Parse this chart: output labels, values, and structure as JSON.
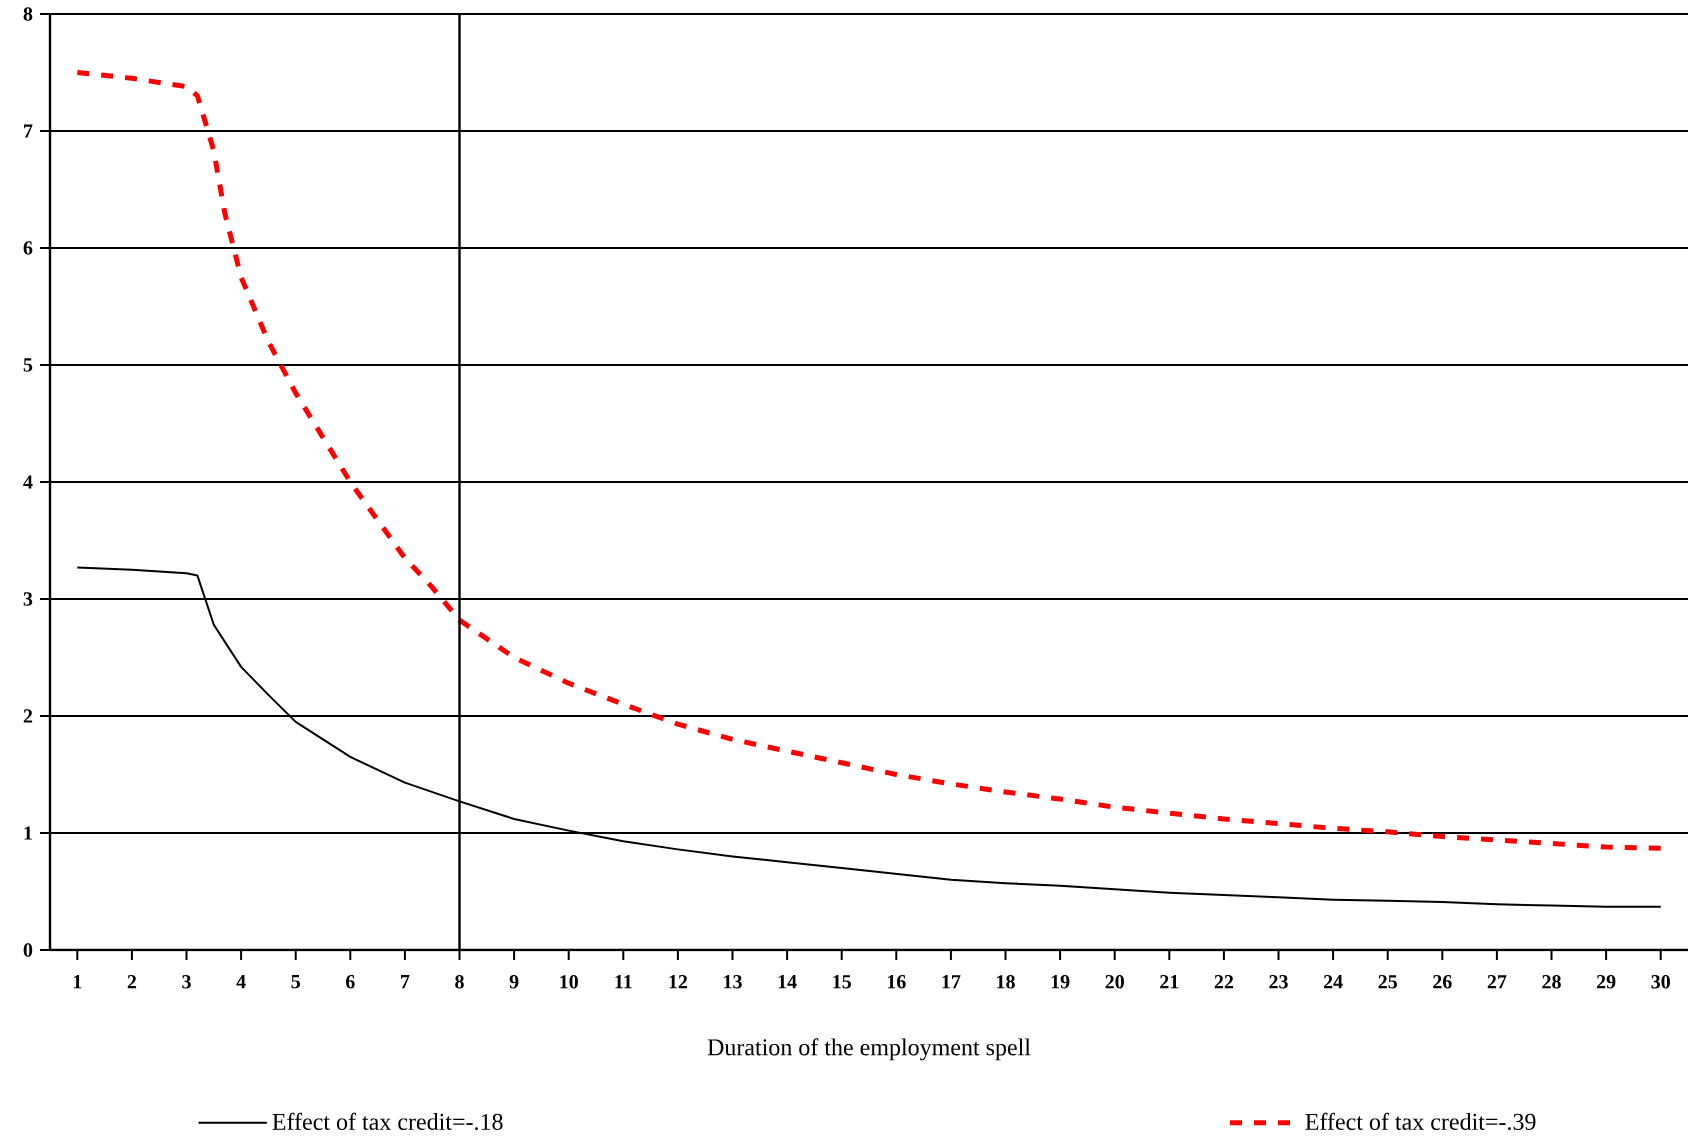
{
  "chart_data": {
    "type": "line",
    "xlabel": "Duration of the employment spell",
    "xlim": [
      0.5,
      30.5
    ],
    "xticks": [
      1,
      2,
      3,
      4,
      5,
      6,
      7,
      8,
      9,
      10,
      11,
      12,
      13,
      14,
      15,
      16,
      17,
      18,
      19,
      20,
      21,
      22,
      23,
      24,
      25,
      26,
      27,
      28,
      29,
      30
    ],
    "ylim": [
      0,
      8
    ],
    "yticks": [
      0,
      1,
      2,
      3,
      4,
      5,
      6,
      7,
      8
    ],
    "grid": "y",
    "legend": "bottom",
    "ref_lines": [
      {
        "axis": "x",
        "value": 8,
        "color": "#000000"
      }
    ],
    "series": [
      {
        "name": "Effect of tax credit=-.18",
        "color": "#000000",
        "line_style": "solid",
        "x": [
          1,
          2,
          3,
          3.2,
          3.5,
          4,
          4.5,
          5,
          6,
          7,
          8,
          9,
          10,
          11,
          12,
          13,
          14,
          15,
          16,
          17,
          18,
          19,
          20,
          21,
          22,
          23,
          24,
          25,
          26,
          27,
          28,
          29,
          30
        ],
        "values": [
          3.27,
          3.25,
          3.22,
          3.2,
          2.78,
          2.42,
          2.18,
          1.95,
          1.65,
          1.43,
          1.27,
          1.12,
          1.02,
          0.93,
          0.86,
          0.8,
          0.75,
          0.7,
          0.65,
          0.6,
          0.57,
          0.55,
          0.52,
          0.49,
          0.47,
          0.45,
          0.43,
          0.42,
          0.41,
          0.39,
          0.38,
          0.37,
          0.37
        ]
      },
      {
        "name": "Effect of tax credit=-.39",
        "color": "#ff0000",
        "line_style": "dashed",
        "x": [
          1,
          2,
          3,
          3.2,
          3.5,
          3.7,
          4,
          4.5,
          5,
          6,
          7,
          7.5,
          8,
          9,
          10,
          11,
          12,
          13,
          14,
          15,
          16,
          17,
          18,
          19,
          20,
          21,
          22,
          23,
          24,
          25,
          26,
          27,
          28,
          29,
          30
        ],
        "values": [
          7.5,
          7.45,
          7.38,
          7.3,
          6.83,
          6.3,
          5.75,
          5.2,
          4.76,
          4.0,
          3.35,
          3.1,
          2.82,
          2.5,
          2.28,
          2.1,
          1.93,
          1.8,
          1.7,
          1.6,
          1.5,
          1.42,
          1.35,
          1.29,
          1.22,
          1.17,
          1.12,
          1.08,
          1.04,
          1.01,
          0.97,
          0.94,
          0.91,
          0.88,
          0.87
        ]
      }
    ]
  }
}
